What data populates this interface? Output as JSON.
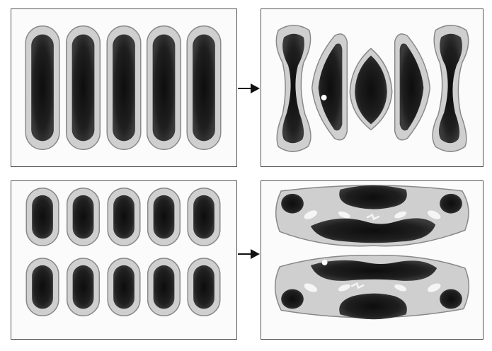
{
  "figure": {
    "panels": [
      {
        "id": "top-left",
        "description_kind": "initial-five-columns"
      },
      {
        "id": "top-right",
        "description_kind": "evolved-five-shapes"
      },
      {
        "id": "bottom-left",
        "description_kind": "initial-two-rows-of-five"
      },
      {
        "id": "bottom-right",
        "description_kind": "evolved-two-bands"
      }
    ],
    "arrows": [
      "top-arrow",
      "bottom-arrow"
    ],
    "colors": {
      "blob": "#1a1a1a",
      "halo": "#cfcfcf",
      "rim": "#777777",
      "border": "#555555"
    }
  }
}
